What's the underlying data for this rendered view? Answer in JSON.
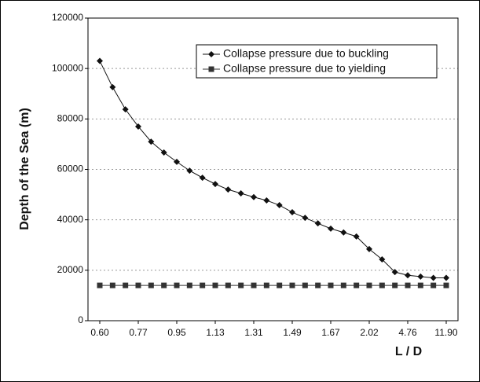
{
  "chart_data": {
    "type": "line",
    "x_label": "L / D",
    "y_label": "Depth of the Sea (m)",
    "categories": [
      "0.60",
      null,
      null,
      "0.77",
      null,
      null,
      "0.95",
      null,
      null,
      "1.13",
      null,
      null,
      "1.31",
      null,
      null,
      "1.49",
      null,
      null,
      "1.67",
      null,
      null,
      "2.02",
      null,
      null,
      "4.76",
      null,
      null,
      "11.90"
    ],
    "series": [
      {
        "name": "Collapse pressure due to buckling",
        "color": "#111111",
        "marker": "diamond",
        "values": [
          103000,
          92600,
          83800,
          77000,
          71000,
          66700,
          63000,
          59500,
          56700,
          54200,
          52000,
          50500,
          49000,
          47700,
          45800,
          43000,
          40800,
          38600,
          36500,
          35000,
          33400,
          28400,
          24300,
          19300,
          18000,
          17500,
          17000,
          17000
        ]
      },
      {
        "name": "Collapse pressure due to yielding",
        "color": "#333333",
        "marker": "square",
        "values": [
          14000,
          14000,
          14000,
          14000,
          14000,
          14000,
          14000,
          14000,
          14000,
          14000,
          14000,
          14000,
          14000,
          14000,
          14000,
          14000,
          14000,
          14000,
          14000,
          14000,
          14000,
          14000,
          14000,
          14000,
          14000,
          14000,
          14000,
          14000
        ]
      }
    ],
    "ylim": [
      0,
      120000
    ],
    "yticks": [
      0,
      20000,
      40000,
      60000,
      80000,
      100000,
      120000
    ],
    "grid": true,
    "legend": "upper-right"
  }
}
